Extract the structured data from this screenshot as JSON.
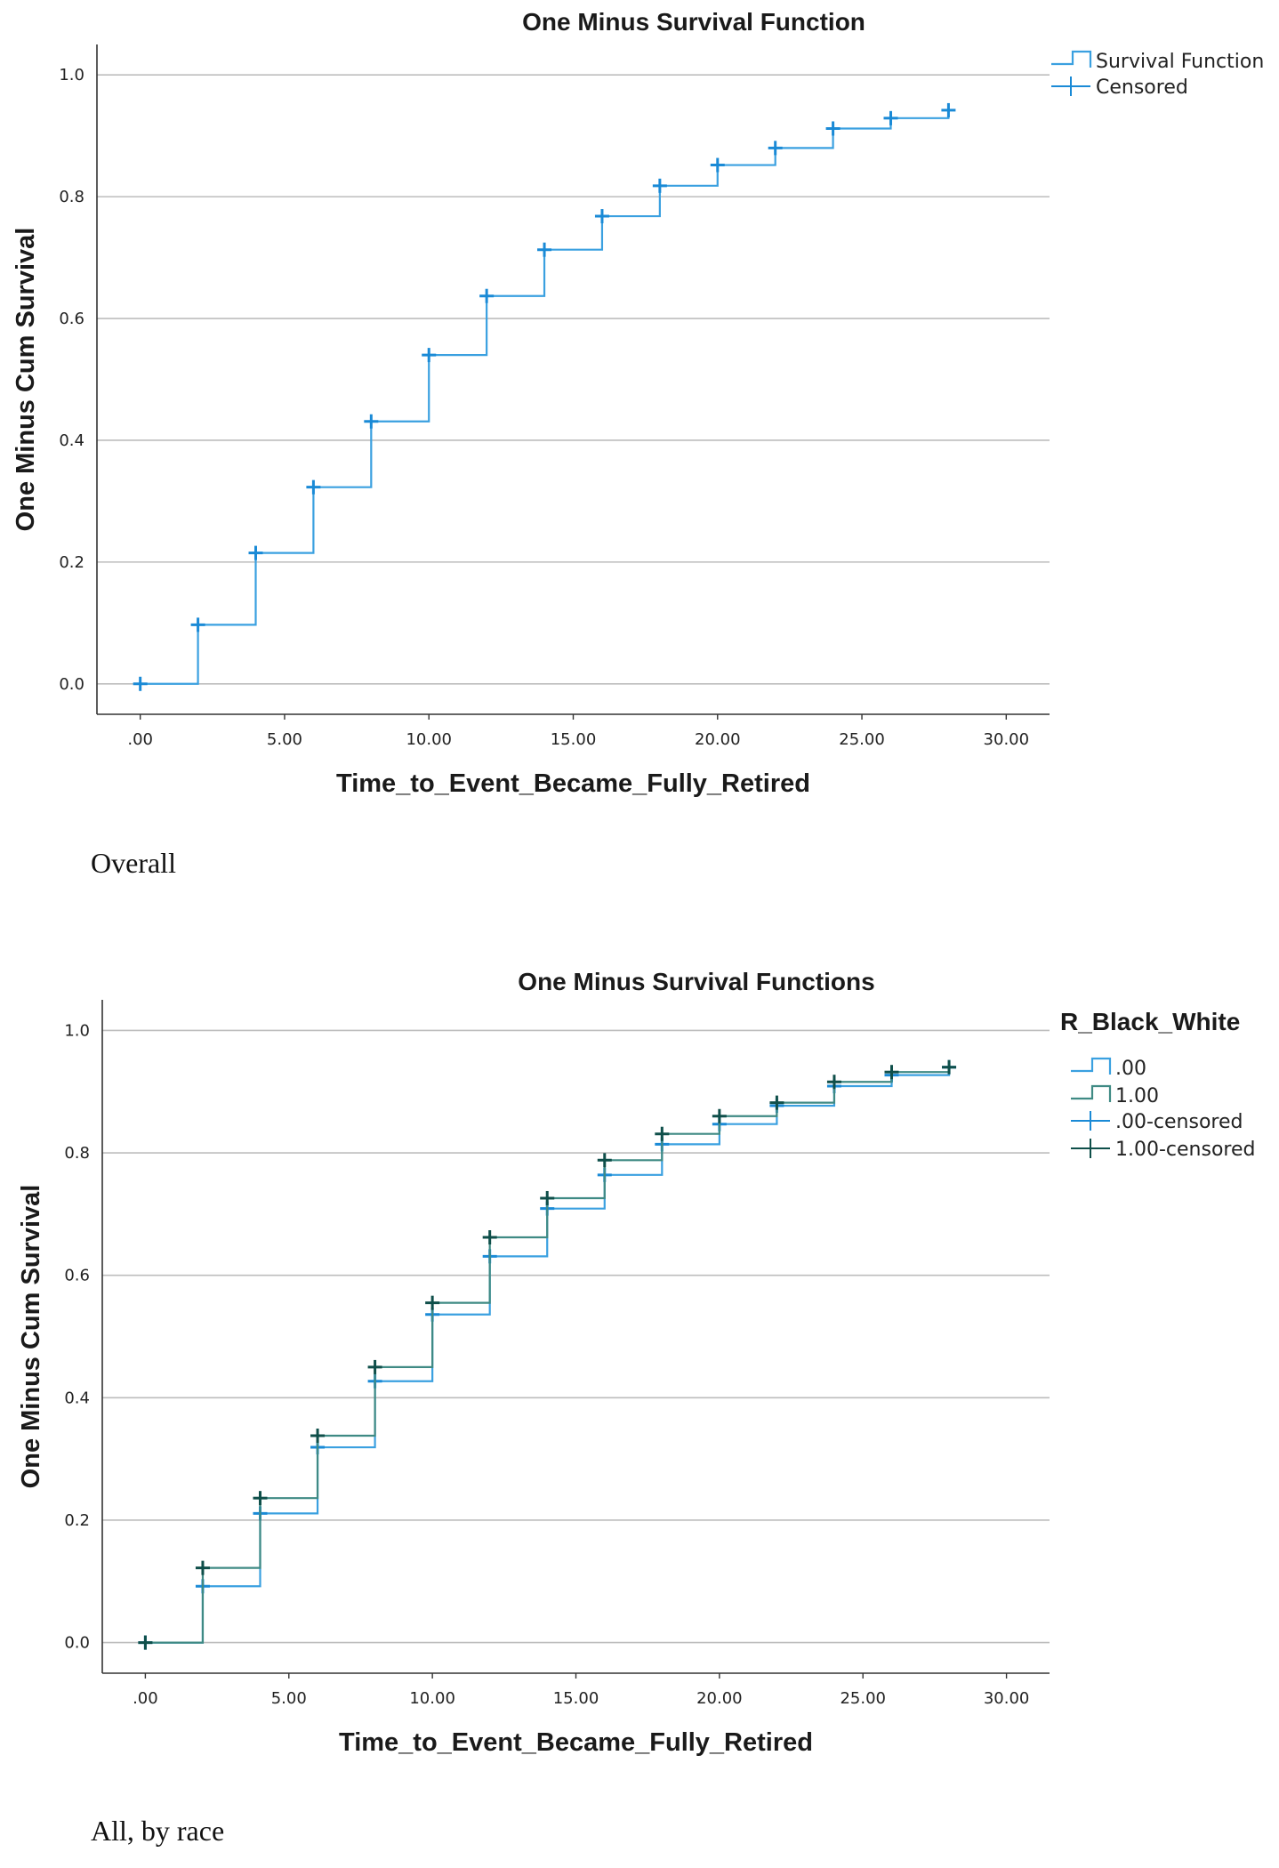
{
  "chart_data": [
    {
      "type": "line",
      "step": true,
      "title": "One Minus Survival Function",
      "xlabel": "Time_to_Event_Became_Fully_Retired",
      "ylabel": "One Minus Cum Survival",
      "xlim": [
        -1.5,
        31.5
      ],
      "ylim": [
        -0.05,
        1.05
      ],
      "xticks": [
        0,
        5,
        10,
        15,
        20,
        25,
        30
      ],
      "xtick_labels": [
        ".00",
        "5.00",
        "10.00",
        "15.00",
        "20.00",
        "25.00",
        "30.00"
      ],
      "yticks": [
        0,
        0.2,
        0.4,
        0.6,
        0.8,
        1.0
      ],
      "ytick_labels": [
        "0.0",
        "0.2",
        "0.4",
        "0.6",
        "0.8",
        "1.0"
      ],
      "grid": "horizontal",
      "legend_title": "",
      "legend_position": "top-right",
      "series": [
        {
          "name": "Survival Function",
          "censored_label": "Censored",
          "color": "#3aa0e0",
          "censor_color": "#1a8ad6",
          "x": [
            0,
            2,
            4,
            6,
            8,
            10,
            12,
            14,
            16,
            18,
            20,
            22,
            24,
            26,
            28
          ],
          "y": [
            0.0,
            0.097,
            0.215,
            0.323,
            0.431,
            0.54,
            0.637,
            0.713,
            0.768,
            0.818,
            0.852,
            0.88,
            0.912,
            0.929,
            0.942
          ]
        }
      ]
    },
    {
      "type": "line",
      "step": true,
      "title": "One Minus Survival Functions",
      "xlabel": "Time_to_Event_Became_Fully_Retired",
      "ylabel": "One Minus Cum Survival",
      "xlim": [
        -1.5,
        31.5
      ],
      "ylim": [
        -0.05,
        1.05
      ],
      "xticks": [
        0,
        5,
        10,
        15,
        20,
        25,
        30
      ],
      "xtick_labels": [
        ".00",
        "5.00",
        "10.00",
        "15.00",
        "20.00",
        "25.00",
        "30.00"
      ],
      "yticks": [
        0,
        0.2,
        0.4,
        0.6,
        0.8,
        1.0
      ],
      "ytick_labels": [
        "0.0",
        "0.2",
        "0.4",
        "0.6",
        "0.8",
        "1.0"
      ],
      "grid": "horizontal",
      "legend_title": "R_Black_White",
      "legend_position": "top-right",
      "series": [
        {
          "name": ".00",
          "censored_label": ".00-censored",
          "color": "#3aa0e0",
          "censor_color": "#1a8ad6",
          "x": [
            0,
            2,
            4,
            6,
            8,
            10,
            12,
            14,
            16,
            18,
            20,
            22,
            24,
            26,
            28
          ],
          "y": [
            0.0,
            0.092,
            0.211,
            0.319,
            0.427,
            0.536,
            0.631,
            0.709,
            0.764,
            0.814,
            0.847,
            0.877,
            0.909,
            0.927,
            0.94
          ]
        },
        {
          "name": "1.00",
          "censored_label": "1.00-censored",
          "color": "#3f8a84",
          "censor_color": "#0f4f4a",
          "x": [
            0,
            2,
            4,
            6,
            8,
            10,
            12,
            14,
            16,
            18,
            20,
            22,
            24,
            26,
            28
          ],
          "y": [
            0.0,
            0.122,
            0.236,
            0.338,
            0.45,
            0.555,
            0.662,
            0.726,
            0.788,
            0.831,
            0.86,
            0.882,
            0.916,
            0.932,
            0.94
          ]
        }
      ]
    }
  ],
  "captions": {
    "overall": "Overall",
    "by_race": "All, by race"
  }
}
